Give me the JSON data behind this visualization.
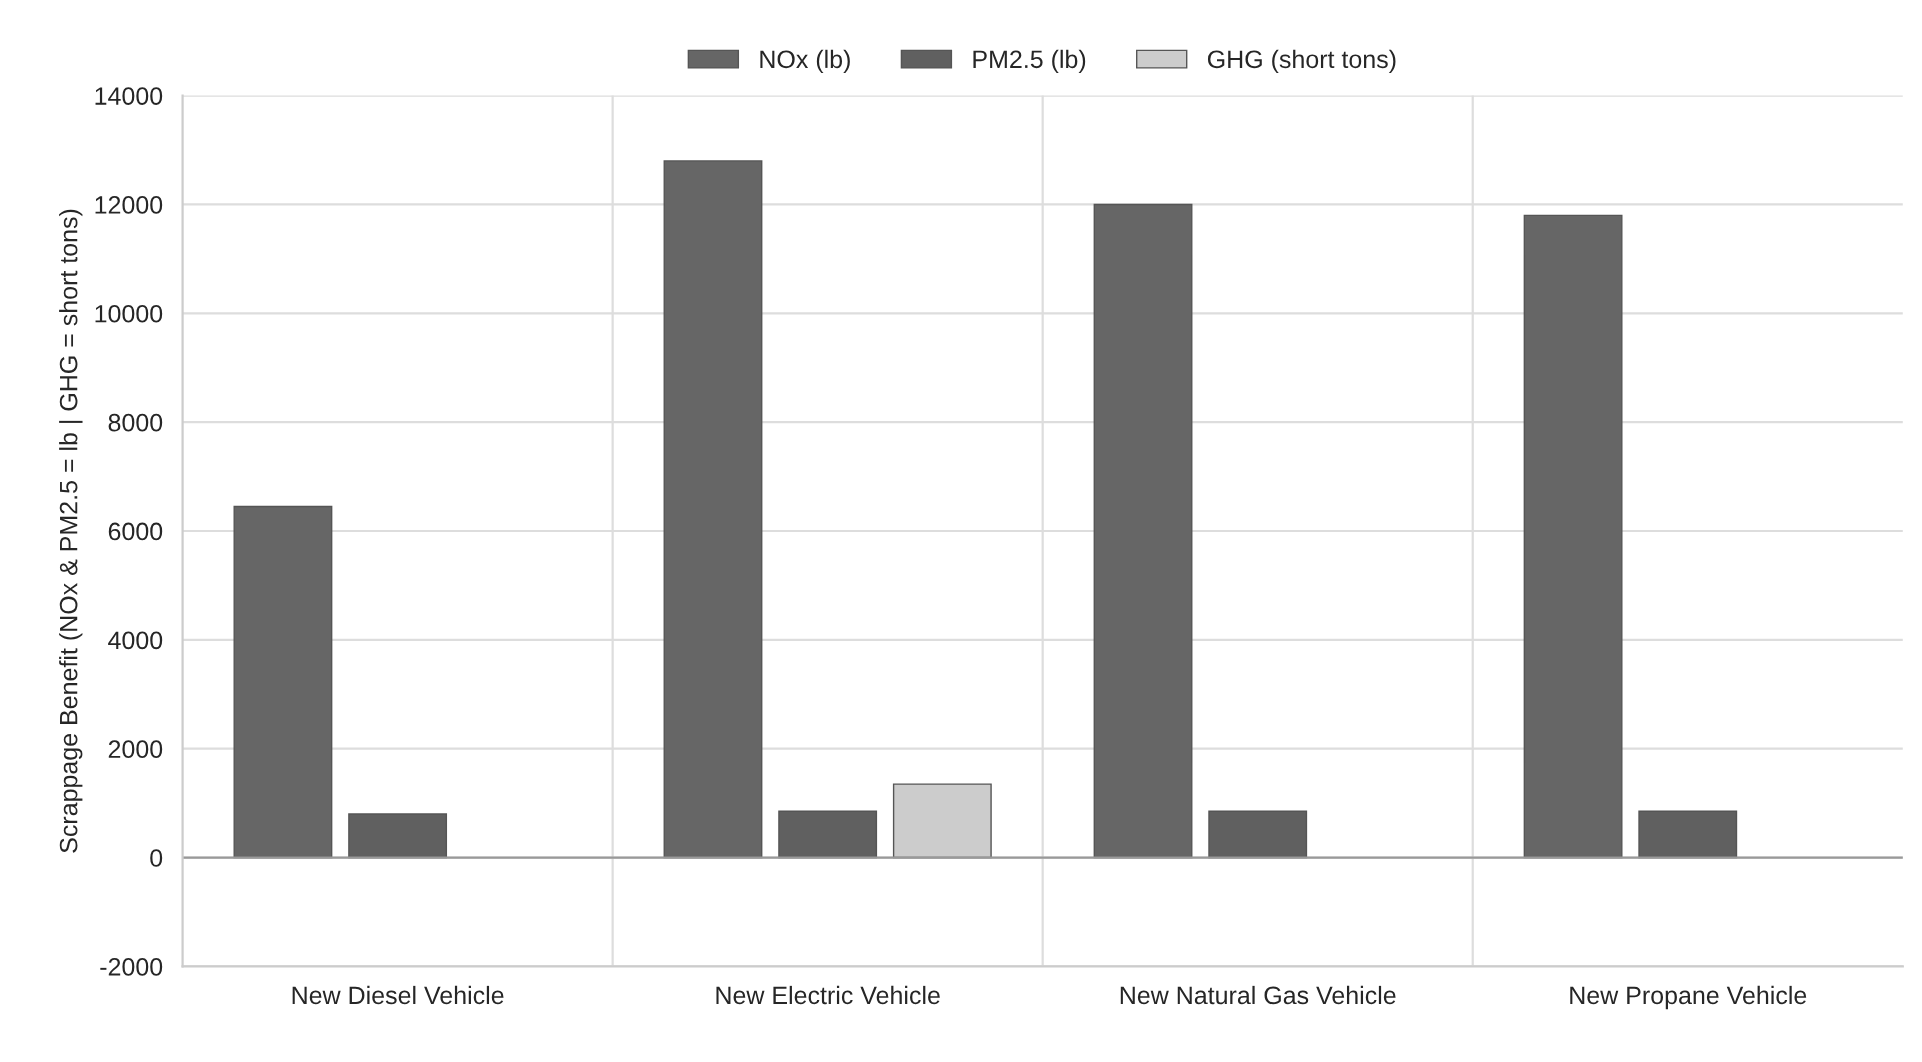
{
  "chart_data": {
    "type": "bar",
    "ylabel": "Scrappage Benefit (NOx & PM2.5 = lb | GHG = short tons)",
    "categories": [
      "New Diesel Vehicle",
      "New Electric Vehicle",
      "New Natural Gas Vehicle",
      "New Propane Vehicle"
    ],
    "series": [
      {
        "name": "NOx (lb)",
        "color": "#666666",
        "values": [
          6450,
          12800,
          12000,
          11800
        ]
      },
      {
        "name": "PM2.5 (lb)",
        "color": "#606060",
        "values": [
          800,
          850,
          850,
          850
        ]
      },
      {
        "name": "GHG (short tons)",
        "color": "#cccccc",
        "values": [
          null,
          1350,
          null,
          null
        ]
      }
    ],
    "ylim": [
      -2000,
      14000
    ],
    "yticks": [
      -2000,
      0,
      2000,
      4000,
      6000,
      8000,
      10000,
      12000,
      14000
    ],
    "grid": true,
    "legend": "top"
  }
}
